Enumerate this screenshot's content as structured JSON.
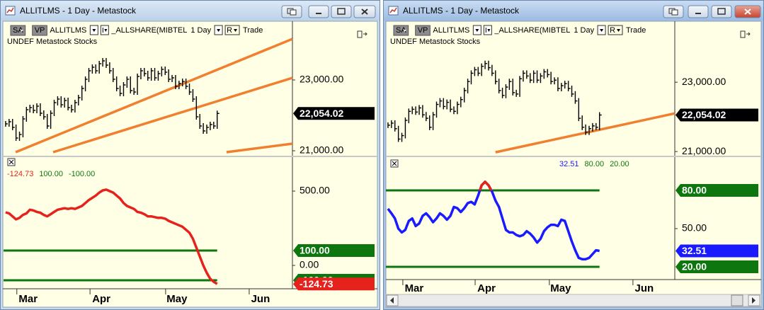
{
  "prices": {
    "closes": [
      21760,
      21820,
      21660,
      21360,
      21460,
      21900,
      22160,
      22220,
      22140,
      22260,
      22060,
      21960,
      21700,
      22060,
      22360,
      22460,
      22300,
      22420,
      22220,
      22160,
      22360,
      22500,
      22760,
      23020,
      23260,
      23360,
      23260,
      23460,
      23540,
      23420,
      23260,
      23020,
      22760,
      22620,
      22860,
      23020,
      22700,
      22660,
      23100,
      23260,
      23180,
      23060,
      23260,
      23060,
      23180,
      23300,
      23220,
      23020,
      23060,
      22820,
      22900,
      22960,
      22820,
      22660,
      22460,
      21960,
      21700,
      21560,
      21660,
      21740,
      21700,
      22054.02
    ],
    "last_label": "22,054.02",
    "color": "#000000"
  },
  "windows": [
    {
      "title": "ALLITLMS - 1 Day - Metastock",
      "toolbar": {
        "sa": "SA",
        "vp": "VP",
        "symbol": "ALLITLMS",
        "overlay": "_ALLSHARE(MIBTEL",
        "period": "1 Day",
        "r": "R",
        "mode": "Trade",
        "info": "UNDEF  Metastock  Stocks"
      },
      "xlim": [
        -0.6,
        82.7
      ],
      "xticks": [
        {
          "value": 6.5,
          "label": "Mar"
        },
        {
          "value": 27.6,
          "label": "Apr"
        },
        {
          "value": 49.4,
          "label": "May"
        },
        {
          "value": 73.5,
          "label": "Jun"
        }
      ],
      "price": {
        "ylim": [
          20860,
          24660
        ],
        "yticks": [
          {
            "value": 23000,
            "label": "23,000.00"
          },
          {
            "value": 21000,
            "label": "21,000.00"
          }
        ],
        "trendline_color": "#f08030",
        "trendlines": [
          {
            "x": [
              2.9,
              82.7
            ],
            "y": [
              20960,
              24160
            ]
          },
          {
            "x": [
              13.7,
              82.7
            ],
            "y": [
              20960,
              23060
            ]
          },
          {
            "x": [
              63.7,
              82.7
            ],
            "y": [
              20960,
              21200
            ]
          }
        ]
      },
      "indicator": {
        "ylim": [
          -157.1,
          728.6
        ],
        "yticks": [
          {
            "value": 500,
            "label": "500.00"
          },
          {
            "value": 0,
            "label": "0.00"
          }
        ],
        "color": "#e5221c",
        "level_color": "#0e760e",
        "levels": [
          {
            "value": 100,
            "label": "100.00"
          },
          {
            "value": -100,
            "label": "-100.00"
          }
        ],
        "values": [
          357,
          350,
          330,
          310,
          320,
          340,
          350,
          375,
          370,
          360,
          355,
          340,
          330,
          345,
          360,
          375,
          380,
          385,
          380,
          385,
          380,
          390,
          400,
          420,
          440,
          455,
          470,
          490,
          505,
          510,
          500,
          490,
          470,
          450,
          420,
          400,
          390,
          380,
          360,
          355,
          345,
          330,
          330,
          325,
          320,
          320,
          315,
          300,
          290,
          280,
          270,
          260,
          240,
          220,
          180,
          120,
          60,
          0,
          -50,
          -90,
          -110,
          -124.73
        ]
      }
    },
    {
      "title": "ALLITLMS - 1 Day - Metastock",
      "toolbar": {
        "sa": "SA",
        "vp": "VP",
        "symbol": "ALLITLMS",
        "overlay": "_ALLSHARE(MIBTEL",
        "period": "1 Day",
        "r": "R",
        "mode": "Trade",
        "info": "UNDEF  Metastock  Stocks"
      },
      "xlim": [
        -0.6,
        82.7
      ],
      "xticks": [
        {
          "value": 7.55,
          "label": "Mar"
        },
        {
          "value": 28.4,
          "label": "Apr"
        },
        {
          "value": 49.8,
          "label": "May"
        },
        {
          "value": 73.9,
          "label": "Jun"
        }
      ],
      "price": {
        "ylim": [
          20880,
          24760
        ],
        "yticks": [
          {
            "value": 23000,
            "label": "23,000.00"
          },
          {
            "value": 21000,
            "label": "21,000.00"
          }
        ],
        "trendline_color": "#f08030",
        "trendlines": [
          {
            "x": [
              31,
              82.7
            ],
            "y": [
              20980,
              22100
            ]
          }
        ]
      },
      "indicator": {
        "ylim": [
          10,
          106.1
        ],
        "yticks": [
          {
            "value": 50,
            "label": "50.00"
          }
        ],
        "color": "#1a1aff",
        "above_upper_color": "#e5221c",
        "level_color": "#0e760e",
        "levels": [
          {
            "value": 80,
            "label": "80.00"
          },
          {
            "value": 20,
            "label": "20.00"
          }
        ],
        "values": [
          65.6,
          62,
          58,
          50,
          47,
          49,
          56,
          58,
          52,
          54,
          60,
          62,
          59,
          55,
          58,
          62,
          60,
          57,
          60,
          67,
          66,
          63,
          66,
          70,
          71,
          69,
          76,
          84,
          86.7,
          84,
          79,
          72,
          67,
          58,
          49,
          47,
          47,
          45,
          44,
          45,
          48,
          46,
          43,
          39,
          42,
          48,
          51,
          53,
          53,
          52,
          57,
          56,
          48,
          40,
          33,
          27,
          26,
          26,
          27,
          30,
          33,
          32.51
        ]
      }
    }
  ]
}
